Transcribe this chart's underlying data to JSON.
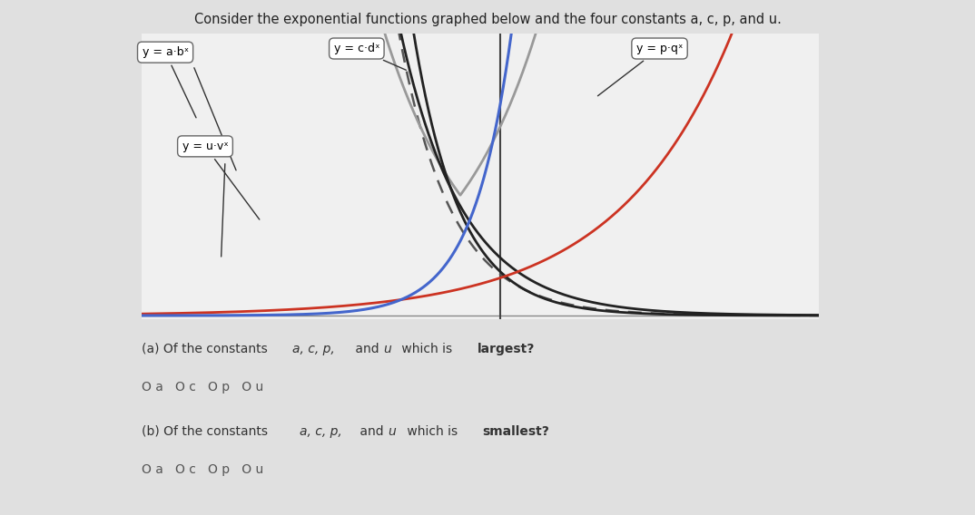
{
  "title": "Consider the exponential functions graphed below and the four constants a, c, p, and u.",
  "page_bg": "#e0e0e0",
  "graph_bg": "#f0f0f0",
  "curve_ab_color": "#222222",
  "curve_cd_color": "#4466cc",
  "curve_pq_color": "#999999",
  "curve_uv_color": "#cc3322",
  "curve_dashed_color": "#555555",
  "vline_color": "#444444",
  "hline_color": "#888888",
  "label_ab": "y = a·bˣ",
  "label_cd": "y = c·dˣ",
  "label_pq": "y = p·qˣ",
  "label_uv": "y = u·vˣ",
  "question_a_pre": "(a) Of the constants ",
  "question_a_mid": "a, c, p,",
  "question_a_post": " and u which is ",
  "question_a_bold": "largest?",
  "question_b_pre": "(b) Of the constants ",
  "question_b_mid": "a, c, p,",
  "question_b_post": " and u which is ",
  "question_b_bold": "smallest?",
  "options": "O a   O c   O p   O u",
  "xlim": [
    -3.5,
    5.0
  ],
  "ylim": [
    -0.1,
    7.5
  ]
}
